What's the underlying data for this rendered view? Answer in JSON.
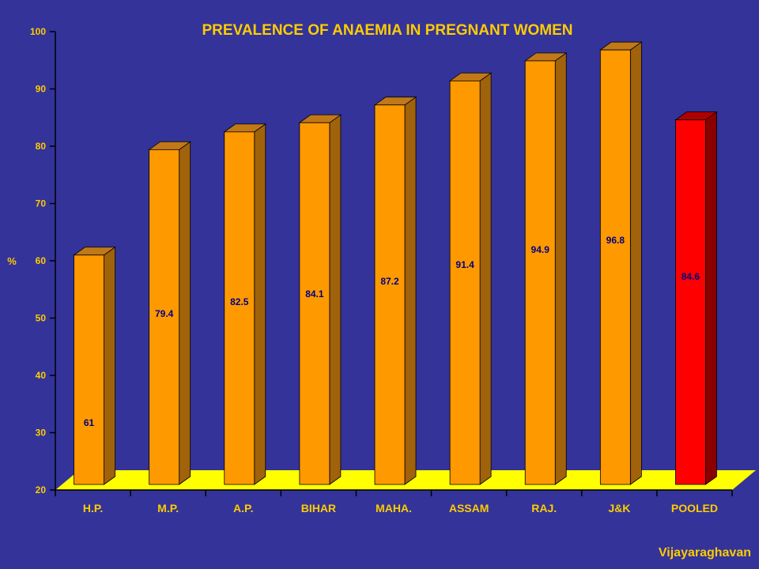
{
  "credit": "Vijayaraghavan",
  "chart_data": {
    "type": "bar",
    "title": "PREVALENCE OF ANAEMIA IN PREGNANT WOMEN",
    "xlabel": "",
    "ylabel": "%",
    "ylim": [
      20,
      100
    ],
    "yticks": [
      20,
      30,
      40,
      50,
      60,
      70,
      80,
      90,
      100
    ],
    "categories": [
      "H.P.",
      "M.P.",
      "A.P.",
      "BIHAR",
      "MAHA.",
      "ASSAM",
      "RAJ.",
      "J&K",
      "POOLED"
    ],
    "values": [
      61,
      79.4,
      82.5,
      84.1,
      87.2,
      91.4,
      94.9,
      96.8,
      84.6
    ],
    "data_labels": [
      "61",
      "79.4",
      "82.5",
      "84.1",
      "87.2",
      "91.4",
      "94.9",
      "96.8",
      "84.6"
    ],
    "grid": false,
    "legend": "none",
    "colors": {
      "background": "#333399",
      "text": "#ffcc00",
      "bar": "#ff9900",
      "bar_side": "#a0620a",
      "bar_top": "#c07818",
      "highlight_bar": "#ff0000",
      "highlight_side": "#8a0000",
      "highlight_top": "#b00000",
      "floor": "#ffff00",
      "data_label": "#000080",
      "axis": "#000000"
    },
    "highlight_category": "POOLED"
  }
}
